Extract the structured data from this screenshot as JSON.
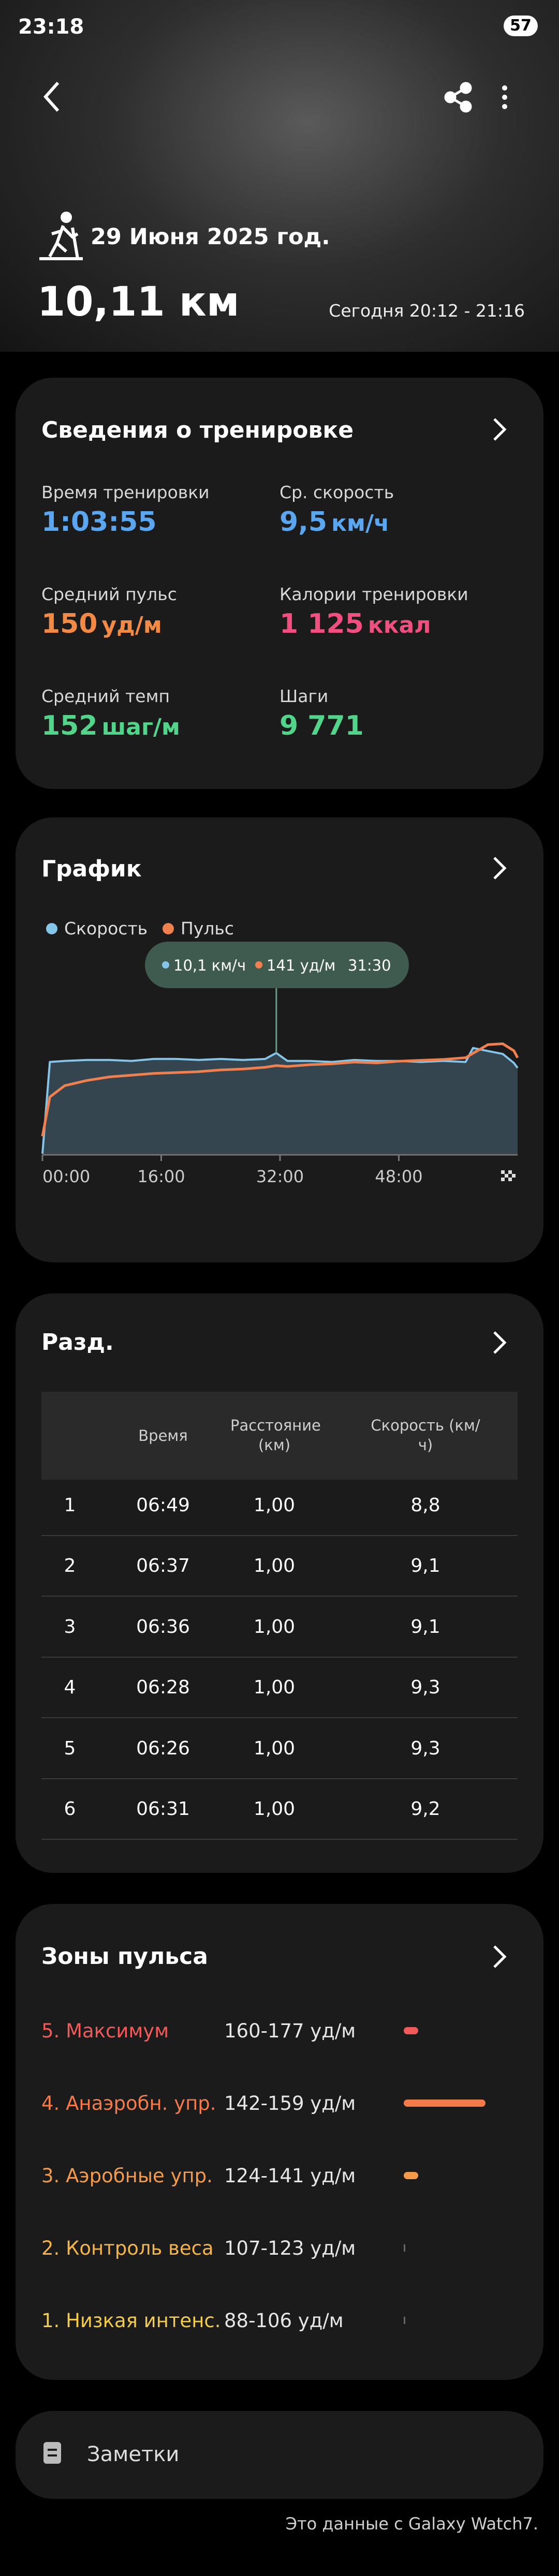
{
  "status_bar": {
    "time": "23:18",
    "battery": "57"
  },
  "header": {
    "date": "29 Июня 2025 год.",
    "distance": "10,11 км",
    "time_range": "Сегодня 20:12 - 21:16"
  },
  "summary": {
    "title": "Сведения о тренировке",
    "items": [
      {
        "label": "Время тренировки",
        "value": "1:03:55"
      },
      {
        "label": "Ср. скорость",
        "value": "9,5",
        "unit": "км/ч"
      },
      {
        "label": "Средний пульс",
        "value": "150",
        "unit": "уд/м"
      },
      {
        "label": "Калории тренировки",
        "value": "1 125",
        "unit": "ккал"
      },
      {
        "label": "Средний темп",
        "value": "152",
        "unit": "шаг/м"
      },
      {
        "label": "Шаги",
        "value": "9 771"
      }
    ]
  },
  "chart_data": {
    "type": "line",
    "title": "График",
    "x": [
      0,
      1,
      3,
      6,
      9,
      12,
      15,
      18,
      21,
      24,
      27,
      30,
      31.5,
      33,
      36,
      39,
      42,
      45,
      48,
      51,
      54,
      57,
      58,
      60,
      62,
      63.5,
      64
    ],
    "series": [
      {
        "name": "Скорость",
        "color": "#86c5ea",
        "values": [
          0,
          9.2,
          9.3,
          9.4,
          9.4,
          9.3,
          9.5,
          9.5,
          9.4,
          9.5,
          9.4,
          9.5,
          10.1,
          9.3,
          9.3,
          9.2,
          9.4,
          9.3,
          9.3,
          9.2,
          9.3,
          9.2,
          10.6,
          10.3,
          10.0,
          9.1,
          8.6
        ]
      },
      {
        "name": "Пульс",
        "color": "#f0804f",
        "axis": "y2",
        "values": [
          60,
          105,
          118,
          124,
          128,
          130,
          132,
          133,
          134,
          136,
          137,
          139,
          141,
          140,
          142,
          143,
          145,
          144,
          146,
          147,
          148,
          150,
          155,
          165,
          166,
          158,
          150
        ]
      }
    ],
    "xlim": [
      0,
      64
    ],
    "xticks": [
      {
        "value": 0,
        "label": "00:00"
      },
      {
        "value": 16,
        "label": "16:00"
      },
      {
        "value": 32,
        "label": "32:00"
      },
      {
        "value": 48,
        "label": "48:00"
      }
    ],
    "ylim": [
      0,
      14
    ],
    "y2lim": [
      40,
      200
    ],
    "tooltip": {
      "x": 31.5,
      "speed": "10,1 км/ч",
      "pulse": "141 уд/м",
      "time": "31:30"
    }
  },
  "splits": {
    "title": "Разд.",
    "columns": [
      "Время",
      "Расстояние (км)",
      "Скорость (км/ч)"
    ],
    "rows": [
      [
        "1",
        "06:49",
        "1,00",
        "8,8"
      ],
      [
        "2",
        "06:37",
        "1,00",
        "9,1"
      ],
      [
        "3",
        "06:36",
        "1,00",
        "9,1"
      ],
      [
        "4",
        "06:28",
        "1,00",
        "9,3"
      ],
      [
        "5",
        "06:26",
        "1,00",
        "9,3"
      ],
      [
        "6",
        "06:31",
        "1,00",
        "9,2"
      ]
    ]
  },
  "zones": {
    "title": "Зоны пульса",
    "rows": [
      {
        "name": "5. Максимум",
        "range": "160-177 уд/м"
      },
      {
        "name": "4. Анаэробн. упр.",
        "range": "142-159 уд/м"
      },
      {
        "name": "3. Аэробные упр.",
        "range": "124-141 уд/м"
      },
      {
        "name": "2. Контроль веса",
        "range": "107-123 уд/м"
      },
      {
        "name": "1. Низкая интенс.",
        "range": "88-106 уд/м"
      }
    ]
  },
  "notes": {
    "label": "Заметки"
  },
  "footer": "Это данные с Galaxy Watch7."
}
